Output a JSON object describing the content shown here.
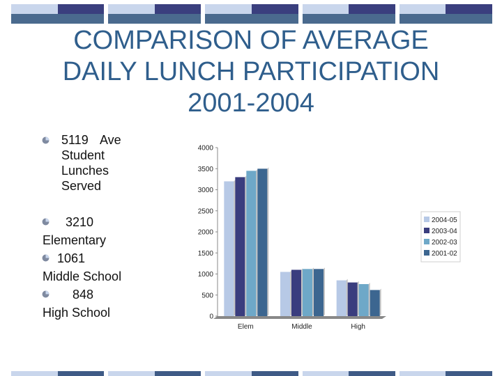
{
  "slide": {
    "title_lines": [
      "COMPARISON OF AVERAGE",
      "DAILY LUNCH PARTICIPATION",
      "2001-2004"
    ]
  },
  "bullets": {
    "total": {
      "value": "5119",
      "label": "Ave Student Lunches Served"
    },
    "elementary": {
      "value": "3210",
      "label": "Elementary"
    },
    "middle": {
      "value": "1061",
      "label": "Middle School"
    },
    "high": {
      "value": "848",
      "label": "High School"
    }
  },
  "chart_data": {
    "type": "bar",
    "categories": [
      "Elem",
      "Middle",
      "High"
    ],
    "series": [
      {
        "name": "2004-05",
        "values": [
          3200,
          1050,
          850
        ],
        "color": "#b7c9e6"
      },
      {
        "name": "2003-04",
        "values": [
          3300,
          1100,
          800
        ],
        "color": "#3a3d7e"
      },
      {
        "name": "2002-03",
        "values": [
          3450,
          1120,
          760
        ],
        "color": "#6ea8c8"
      },
      {
        "name": "2001-02",
        "values": [
          3500,
          1120,
          620
        ],
        "color": "#3c6690"
      }
    ],
    "y_ticks": [
      "4000",
      "3500",
      "3000",
      "2500",
      "2000",
      "1500",
      "1000",
      "500",
      "0"
    ],
    "ylim": [
      0,
      4000
    ],
    "legend_position": "right",
    "grid": false
  }
}
